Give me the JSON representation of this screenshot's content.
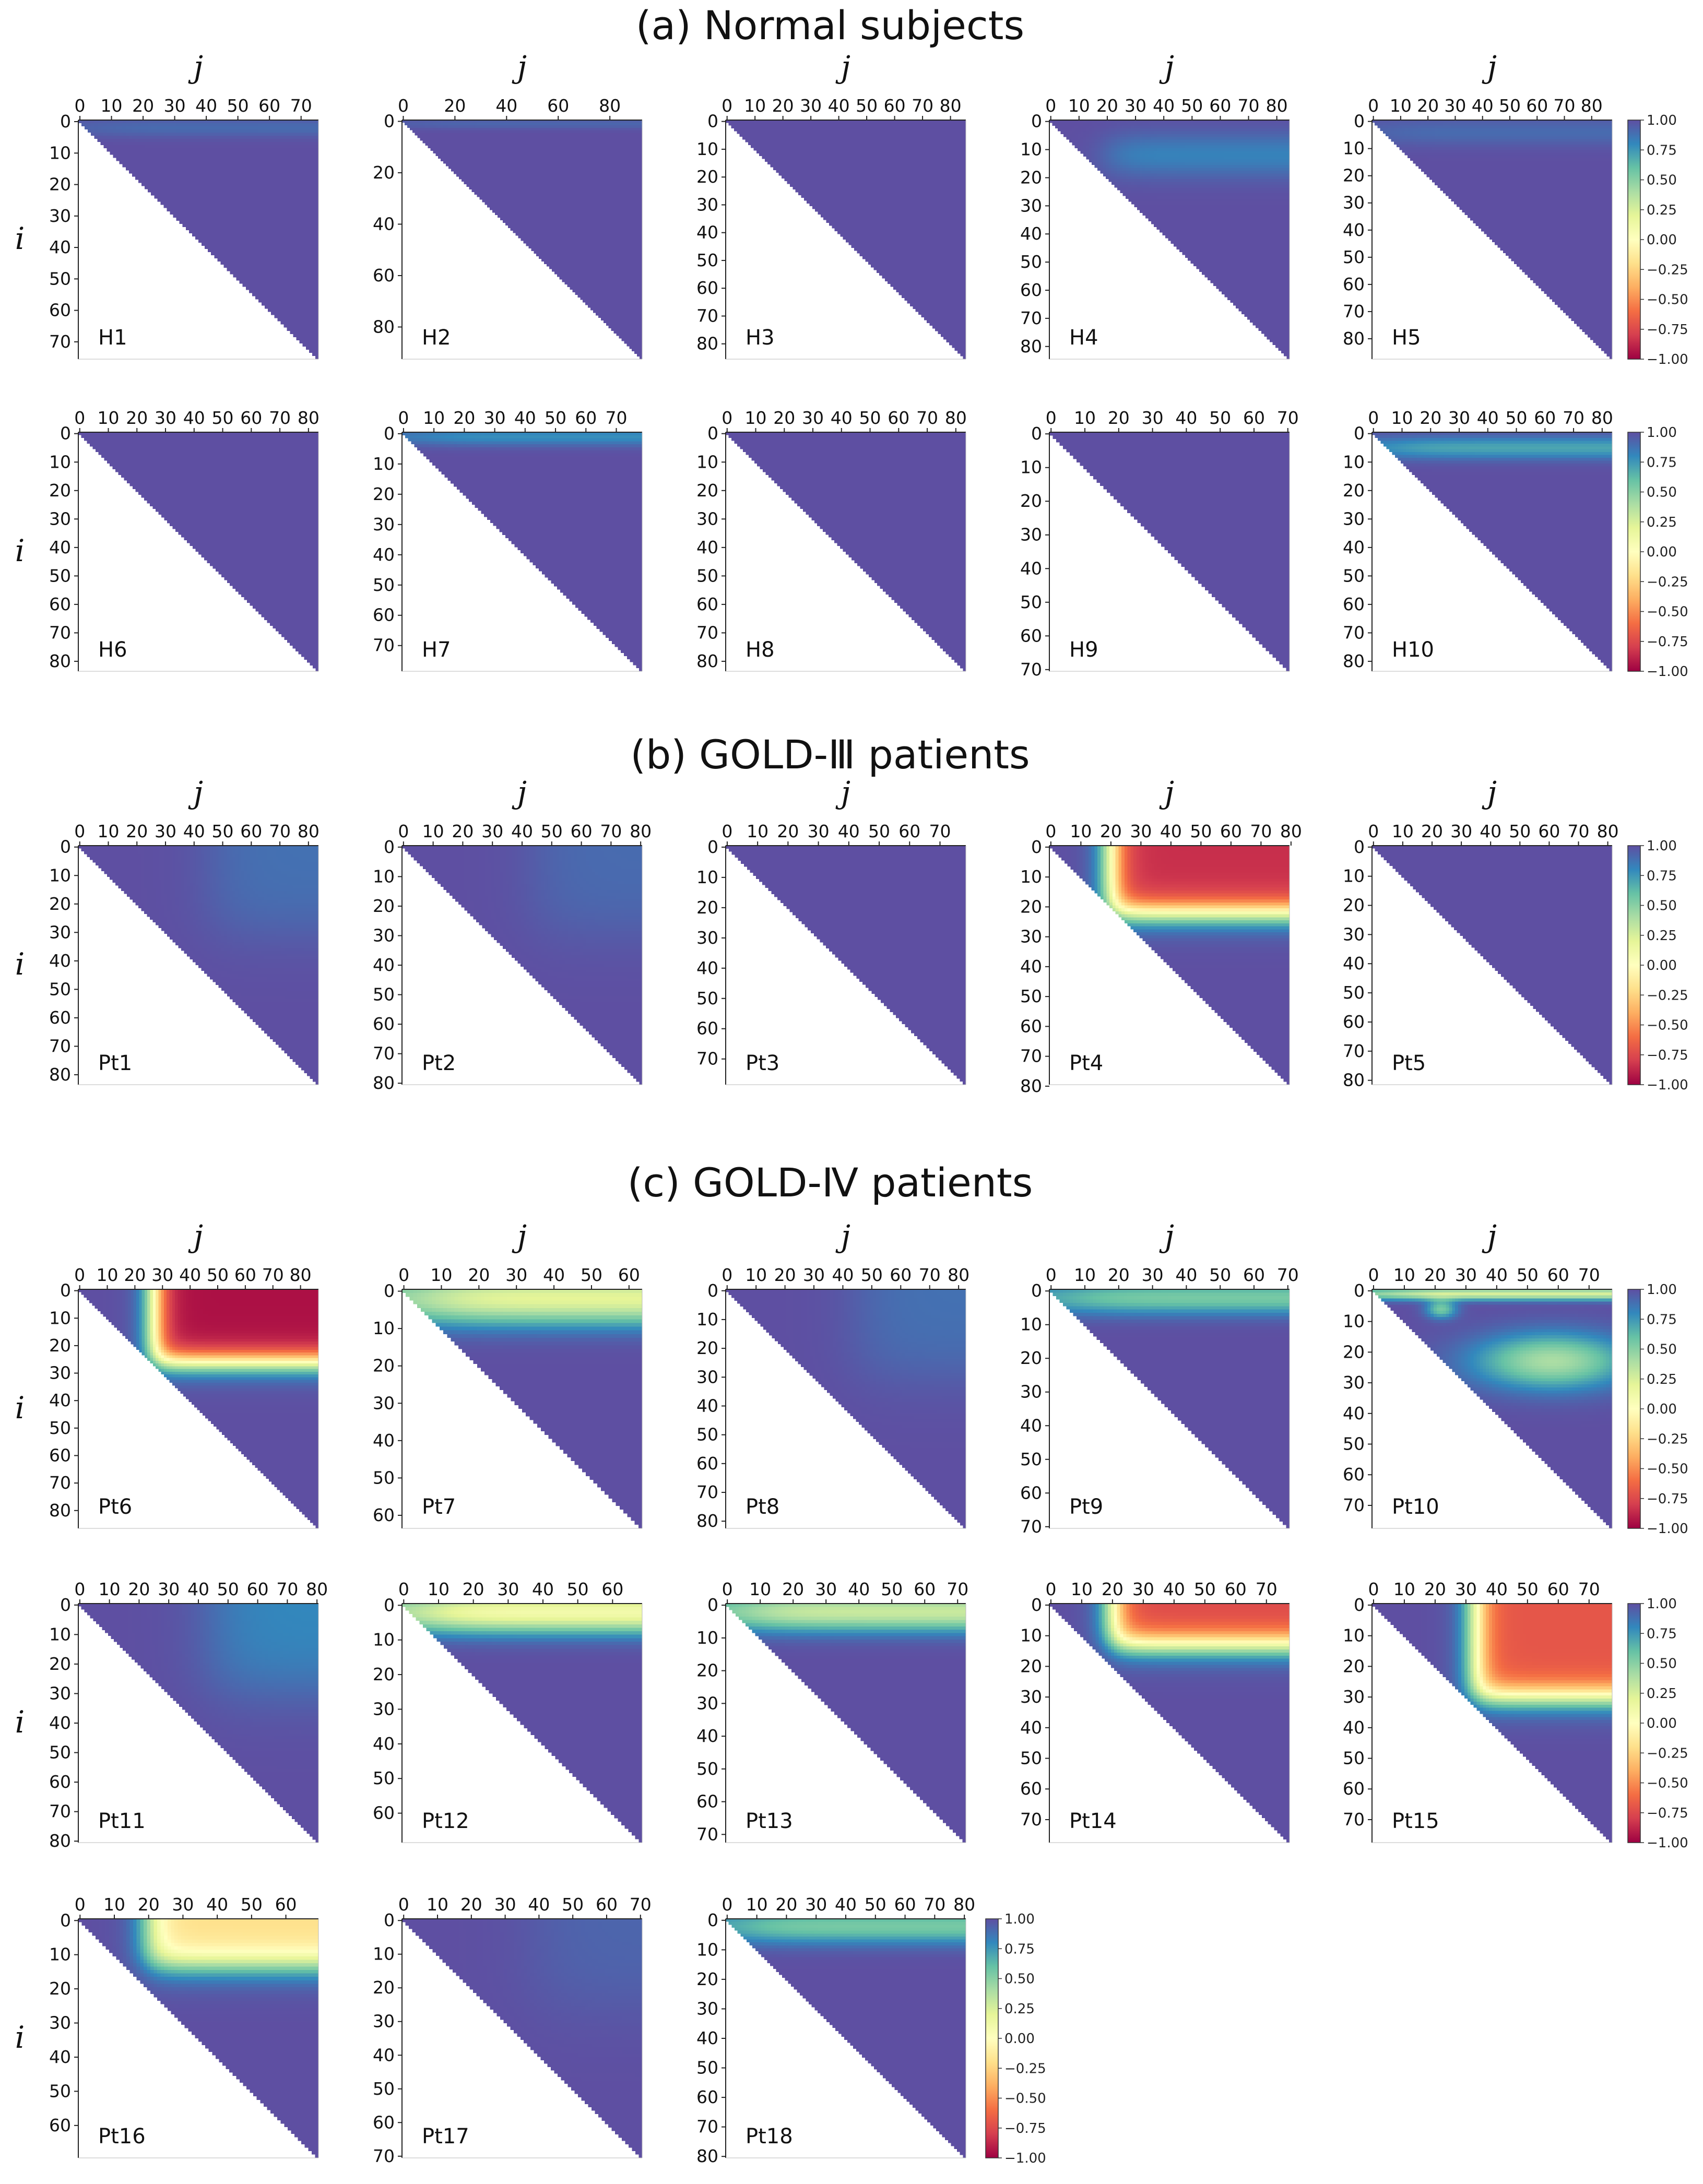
{
  "colors": {
    "stops": [
      "#9e0142",
      "#d53e4f",
      "#f46d43",
      "#fdae61",
      "#fee08b",
      "#ffffbf",
      "#e6f598",
      "#abdda4",
      "#66c2a5",
      "#3288bd",
      "#5e4fa2"
    ]
  },
  "chart_data": {
    "type": "heatmap",
    "axis_labels": {
      "x": "j",
      "y": "i"
    },
    "value_range": [
      -1.0,
      1.0
    ],
    "colorbar_ticks": [
      "1.00",
      "0.75",
      "0.50",
      "0.25",
      "0.00",
      "−0.25",
      "−0.50",
      "−0.75",
      "−1.00"
    ],
    "sections": [
      {
        "title": "(a) Normal subjects"
      },
      {
        "title": "(b) GOLD-Ⅲ patients"
      },
      {
        "title": "(c) GOLD-Ⅳ patients"
      }
    ],
    "panels": [
      {
        "label": "H1",
        "size": 76,
        "xticks": [
          0,
          10,
          20,
          30,
          40,
          50,
          60,
          70
        ],
        "yticks": [
          0,
          10,
          20,
          30,
          40,
          50,
          60,
          70
        ],
        "features": [
          {
            "type": "topband",
            "row_center": 2,
            "width": 3,
            "depth": 0.1
          }
        ]
      },
      {
        "label": "H2",
        "size": 93,
        "xticks": [
          0,
          20,
          40,
          60,
          80
        ],
        "yticks": [
          0,
          20,
          40,
          60,
          80
        ],
        "features": [
          {
            "type": "topband",
            "row_center": 1,
            "width": 2,
            "depth": 0.08
          }
        ]
      },
      {
        "label": "H3",
        "size": 86,
        "xticks": [
          0,
          10,
          20,
          30,
          40,
          50,
          60,
          70,
          80
        ],
        "yticks": [
          0,
          10,
          20,
          30,
          40,
          50,
          60,
          70,
          80
        ],
        "features": []
      },
      {
        "label": "H4",
        "size": 85,
        "xticks": [
          0,
          10,
          20,
          30,
          40,
          50,
          60,
          70,
          80
        ],
        "yticks": [
          0,
          10,
          20,
          30,
          40,
          50,
          60,
          70,
          80
        ],
        "features": [
          {
            "type": "topband",
            "row_center": 12,
            "width": 8,
            "depth": 0.18,
            "col_start": 20
          }
        ]
      },
      {
        "label": "H5",
        "size": 88,
        "xticks": [
          0,
          10,
          20,
          30,
          40,
          50,
          60,
          70,
          80
        ],
        "yticks": [
          0,
          10,
          20,
          30,
          40,
          50,
          60,
          70,
          80
        ],
        "features": [
          {
            "type": "topband",
            "row_center": 4,
            "width": 5,
            "depth": 0.1
          }
        ]
      },
      {
        "label": "H6",
        "size": 84,
        "xticks": [
          0,
          10,
          20,
          30,
          40,
          50,
          60,
          70,
          80
        ],
        "yticks": [
          0,
          10,
          20,
          30,
          40,
          50,
          60,
          70,
          80
        ],
        "features": []
      },
      {
        "label": "H7",
        "size": 79,
        "xticks": [
          0,
          10,
          20,
          30,
          40,
          50,
          60,
          70
        ],
        "yticks": [
          0,
          10,
          20,
          30,
          40,
          50,
          60,
          70
        ],
        "features": [
          {
            "type": "topband",
            "row_center": 1,
            "width": 3,
            "depth": 0.22
          }
        ]
      },
      {
        "label": "H8",
        "size": 84,
        "xticks": [
          0,
          10,
          20,
          30,
          40,
          50,
          60,
          70,
          80
        ],
        "yticks": [
          0,
          10,
          20,
          30,
          40,
          50,
          60,
          70,
          80
        ],
        "features": []
      },
      {
        "label": "H9",
        "size": 71,
        "xticks": [
          0,
          10,
          20,
          30,
          40,
          50,
          60,
          70
        ],
        "yticks": [
          0,
          10,
          20,
          30,
          40,
          50,
          60,
          70
        ],
        "features": []
      },
      {
        "label": "H10",
        "size": 84,
        "xticks": [
          0,
          10,
          20,
          30,
          40,
          50,
          60,
          70,
          80
        ],
        "yticks": [
          0,
          10,
          20,
          30,
          40,
          50,
          60,
          70,
          80
        ],
        "features": [
          {
            "type": "topband",
            "row_center": 5,
            "width": 4,
            "depth": 0.3
          }
        ]
      },
      {
        "label": "Pt1",
        "size": 84,
        "xticks": [
          0,
          10,
          20,
          30,
          40,
          50,
          60,
          70,
          80
        ],
        "yticks": [
          0,
          10,
          20,
          30,
          40,
          50,
          60,
          70,
          80
        ],
        "features": [
          {
            "type": "corner",
            "depth": 0.12
          }
        ]
      },
      {
        "label": "Pt2",
        "size": 81,
        "xticks": [
          0,
          10,
          20,
          30,
          40,
          50,
          60,
          70,
          80
        ],
        "yticks": [
          0,
          10,
          20,
          30,
          40,
          50,
          60,
          70,
          80
        ],
        "features": [
          {
            "type": "corner",
            "depth": 0.1
          }
        ]
      },
      {
        "label": "Pt3",
        "size": 79,
        "xticks": [
          0,
          10,
          20,
          30,
          40,
          50,
          60,
          70
        ],
        "yticks": [
          0,
          10,
          20,
          30,
          40,
          50,
          60,
          70
        ],
        "features": []
      },
      {
        "label": "Pt4",
        "size": 80,
        "xticks": [
          0,
          10,
          20,
          30,
          40,
          50,
          60,
          70,
          80
        ],
        "yticks": [
          0,
          10,
          20,
          30,
          40,
          50,
          60,
          70,
          80
        ],
        "features": [
          {
            "type": "red",
            "row_end": 22,
            "col_start": 20,
            "low": -0.85
          }
        ]
      },
      {
        "label": "Pt5",
        "size": 82,
        "xticks": [
          0,
          10,
          20,
          30,
          40,
          50,
          60,
          70,
          80
        ],
        "yticks": [
          0,
          10,
          20,
          30,
          40,
          50,
          60,
          70,
          80
        ],
        "features": []
      },
      {
        "label": "Pt6",
        "size": 87,
        "xticks": [
          0,
          10,
          20,
          30,
          40,
          50,
          60,
          70,
          80
        ],
        "yticks": [
          0,
          10,
          20,
          30,
          40,
          50,
          60,
          70,
          80
        ],
        "features": [
          {
            "type": "red",
            "row_end": 26,
            "col_start": 27,
            "low": -0.95
          }
        ]
      },
      {
        "label": "Pt7",
        "size": 64,
        "xticks": [
          0,
          10,
          20,
          30,
          40,
          50,
          60
        ],
        "yticks": [
          0,
          10,
          20,
          30,
          40,
          50,
          60
        ],
        "features": [
          {
            "type": "topband",
            "row_center": 2,
            "width": 7,
            "depth": 0.8
          }
        ]
      },
      {
        "label": "Pt8",
        "size": 83,
        "xticks": [
          0,
          10,
          20,
          30,
          40,
          50,
          60,
          70,
          80
        ],
        "yticks": [
          0,
          10,
          20,
          30,
          40,
          50,
          60,
          70,
          80
        ],
        "features": [
          {
            "type": "corner",
            "depth": 0.12
          }
        ]
      },
      {
        "label": "Pt9",
        "size": 71,
        "xticks": [
          0,
          10,
          20,
          30,
          40,
          50,
          60,
          70
        ],
        "yticks": [
          0,
          10,
          20,
          30,
          40,
          50,
          60,
          70
        ],
        "features": [
          {
            "type": "topband",
            "row_center": 2,
            "width": 5,
            "depth": 0.45
          }
        ]
      },
      {
        "label": "Pt10",
        "size": 78,
        "xticks": [
          0,
          10,
          20,
          30,
          40,
          50,
          60,
          70
        ],
        "yticks": [
          0,
          10,
          20,
          30,
          40,
          50,
          60,
          70
        ],
        "features": [
          {
            "type": "topband",
            "row_center": 1,
            "width": 2,
            "depth": 0.75
          },
          {
            "type": "blob",
            "row": 23,
            "col": 58,
            "rw": 9,
            "cw": 25,
            "depth": 0.6
          },
          {
            "type": "blob",
            "row": 6,
            "col": 22,
            "rw": 3,
            "cw": 5,
            "depth": 0.45
          }
        ]
      },
      {
        "label": "Pt11",
        "size": 81,
        "xticks": [
          0,
          10,
          20,
          30,
          40,
          50,
          60,
          70,
          80
        ],
        "yticks": [
          0,
          10,
          20,
          30,
          40,
          50,
          60,
          70,
          80
        ],
        "features": [
          {
            "type": "corner",
            "depth": 0.2
          }
        ]
      },
      {
        "label": "Pt12",
        "size": 69,
        "xticks": [
          0,
          10,
          20,
          30,
          40,
          50,
          60
        ],
        "yticks": [
          0,
          10,
          20,
          30,
          40,
          50,
          60
        ],
        "features": [
          {
            "type": "topband",
            "row_center": 2,
            "width": 6,
            "depth": 0.9
          }
        ]
      },
      {
        "label": "Pt13",
        "size": 73,
        "xticks": [
          0,
          10,
          20,
          30,
          40,
          50,
          60,
          70
        ],
        "yticks": [
          0,
          10,
          20,
          30,
          40,
          50,
          60,
          70
        ],
        "features": [
          {
            "type": "topband",
            "row_center": 2,
            "width": 6,
            "depth": 0.7
          }
        ]
      },
      {
        "label": "Pt14",
        "size": 78,
        "xticks": [
          0,
          10,
          20,
          30,
          40,
          50,
          60,
          70
        ],
        "yticks": [
          0,
          10,
          20,
          30,
          40,
          50,
          60,
          70
        ],
        "features": [
          {
            "type": "red",
            "row_end": 13,
            "col_start": 20,
            "low": -0.75
          }
        ]
      },
      {
        "label": "Pt15",
        "size": 78,
        "xticks": [
          0,
          10,
          20,
          30,
          40,
          50,
          60,
          70
        ],
        "yticks": [
          0,
          10,
          20,
          30,
          40,
          50,
          60,
          70
        ],
        "features": [
          {
            "type": "red",
            "row_end": 30,
            "col_start": 33,
            "low": -0.7
          }
        ]
      },
      {
        "label": "Pt16",
        "size": 70,
        "xticks": [
          0,
          10,
          20,
          30,
          40,
          50,
          60
        ],
        "yticks": [
          0,
          10,
          20,
          30,
          40,
          50,
          60
        ],
        "features": [
          {
            "type": "red",
            "row_end": 13,
            "col_start": 20,
            "low": -0.2
          }
        ]
      },
      {
        "label": "Pt17",
        "size": 71,
        "xticks": [
          0,
          10,
          20,
          30,
          40,
          50,
          60,
          70
        ],
        "yticks": [
          0,
          10,
          20,
          30,
          40,
          50,
          60,
          70
        ],
        "features": [
          {
            "type": "corner",
            "depth": 0.08
          }
        ]
      },
      {
        "label": "Pt18",
        "size": 81,
        "xticks": [
          0,
          10,
          20,
          30,
          40,
          50,
          60,
          70,
          80
        ],
        "yticks": [
          0,
          10,
          20,
          30,
          40,
          50,
          60,
          70,
          80
        ],
        "features": [
          {
            "type": "topband",
            "row_center": 2,
            "width": 6,
            "depth": 0.45
          }
        ]
      }
    ]
  }
}
